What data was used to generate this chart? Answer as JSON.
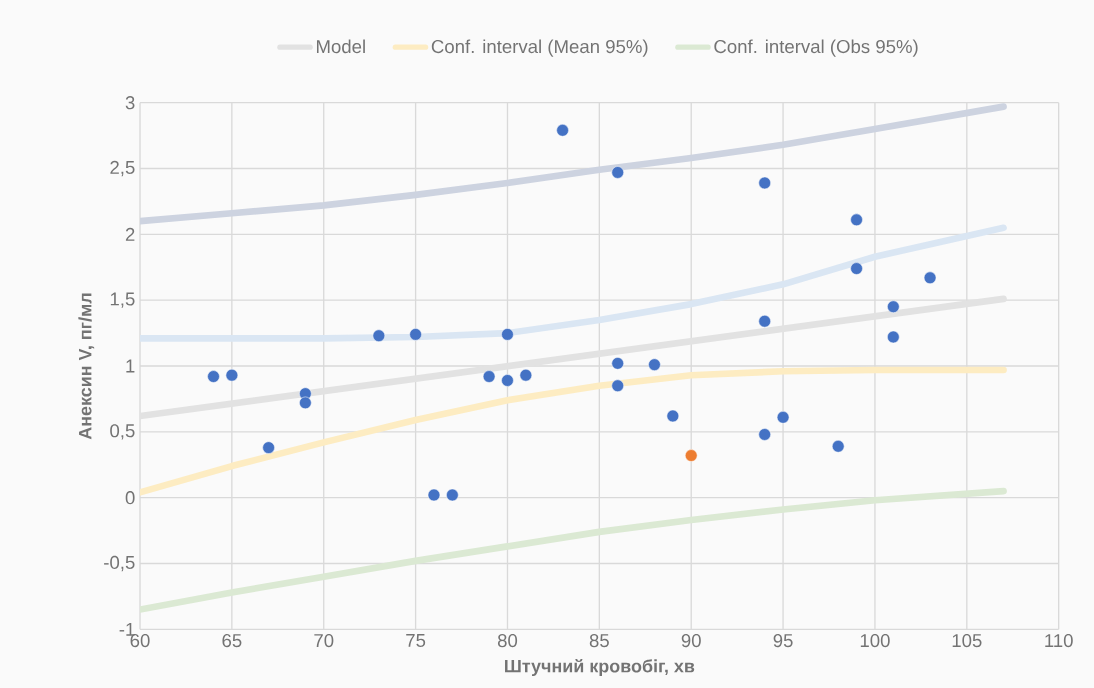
{
  "chart_data": {
    "type": "scatter",
    "xlabel": "Штучний кровобіг, хв",
    "ylabel": "Анексин V, пг/мл",
    "xlim": [
      60,
      110
    ],
    "ylim": [
      -1,
      3
    ],
    "xticks": [
      60,
      65,
      70,
      75,
      80,
      85,
      90,
      95,
      100,
      105,
      110
    ],
    "yticks": [
      {
        "value": -1,
        "label": "-1"
      },
      {
        "value": -0.5,
        "label": "-0,5"
      },
      {
        "value": 0,
        "label": "0"
      },
      {
        "value": 0.5,
        "label": "0,5"
      },
      {
        "value": 1,
        "label": "1"
      },
      {
        "value": 1.5,
        "label": "1,5"
      },
      {
        "value": 2,
        "label": "2"
      },
      {
        "value": 2.5,
        "label": "2,5"
      },
      {
        "value": 3,
        "label": "3"
      }
    ],
    "grid": true,
    "legend": "top",
    "marker": "circle",
    "series": [
      {
        "type": "line",
        "marker": "none",
        "name": "Model",
        "color": "#e2e2e2",
        "x": [
          60,
          107
        ],
        "values": [
          0.62,
          1.51
        ]
      },
      {
        "type": "line",
        "marker": "none",
        "name": "Conf. interval (Mean 95%)",
        "color": "#fdecc2",
        "x": [
          60,
          65,
          70,
          75,
          80,
          85,
          90,
          95,
          100,
          107
        ],
        "values": [
          0.04,
          0.24,
          0.42,
          0.59,
          0.74,
          0.85,
          0.93,
          0.96,
          0.97,
          0.97
        ]
      },
      {
        "type": "line",
        "marker": "none",
        "name": "Conf. interval (Obs 95%)",
        "color": "#dbe9d3",
        "x": [
          60,
          65,
          70,
          75,
          80,
          85,
          90,
          95,
          100,
          107
        ],
        "values": [
          -0.85,
          -0.72,
          -0.6,
          -0.48,
          -0.37,
          -0.26,
          -0.17,
          -0.09,
          -0.02,
          0.05
        ]
      },
      {
        "type": "line",
        "marker": "none",
        "color": "#dae6f3",
        "x": [
          60,
          65,
          70,
          75,
          80,
          85,
          90,
          95,
          100,
          107
        ],
        "values": [
          1.21,
          1.21,
          1.21,
          1.22,
          1.25,
          1.35,
          1.47,
          1.62,
          1.83,
          2.05
        ]
      },
      {
        "type": "line",
        "marker": "none",
        "color": "#cdd3e0",
        "x": [
          60,
          65,
          70,
          75,
          80,
          85,
          90,
          95,
          100,
          107
        ],
        "values": [
          2.1,
          2.16,
          2.22,
          2.3,
          2.39,
          2.49,
          2.58,
          2.68,
          2.8,
          2.97
        ]
      },
      {
        "color": "#4472c4",
        "x": [
          64,
          65,
          67,
          69,
          69,
          73,
          75,
          76,
          77,
          79,
          80,
          80,
          81,
          83,
          86,
          86,
          86,
          88,
          89,
          94,
          94,
          94,
          95,
          98,
          99,
          99,
          101,
          101,
          103
        ],
        "values": [
          0.92,
          0.93,
          0.38,
          0.79,
          0.72,
          1.23,
          1.24,
          0.02,
          0.02,
          0.92,
          0.89,
          1.24,
          0.93,
          2.79,
          2.47,
          1.02,
          0.85,
          1.01,
          0.62,
          2.39,
          1.34,
          0.48,
          0.61,
          0.39,
          2.11,
          1.74,
          1.45,
          1.22,
          1.67
        ]
      },
      {
        "color": "#ed7d31",
        "x": [
          90
        ],
        "values": [
          0.32
        ]
      }
    ]
  }
}
